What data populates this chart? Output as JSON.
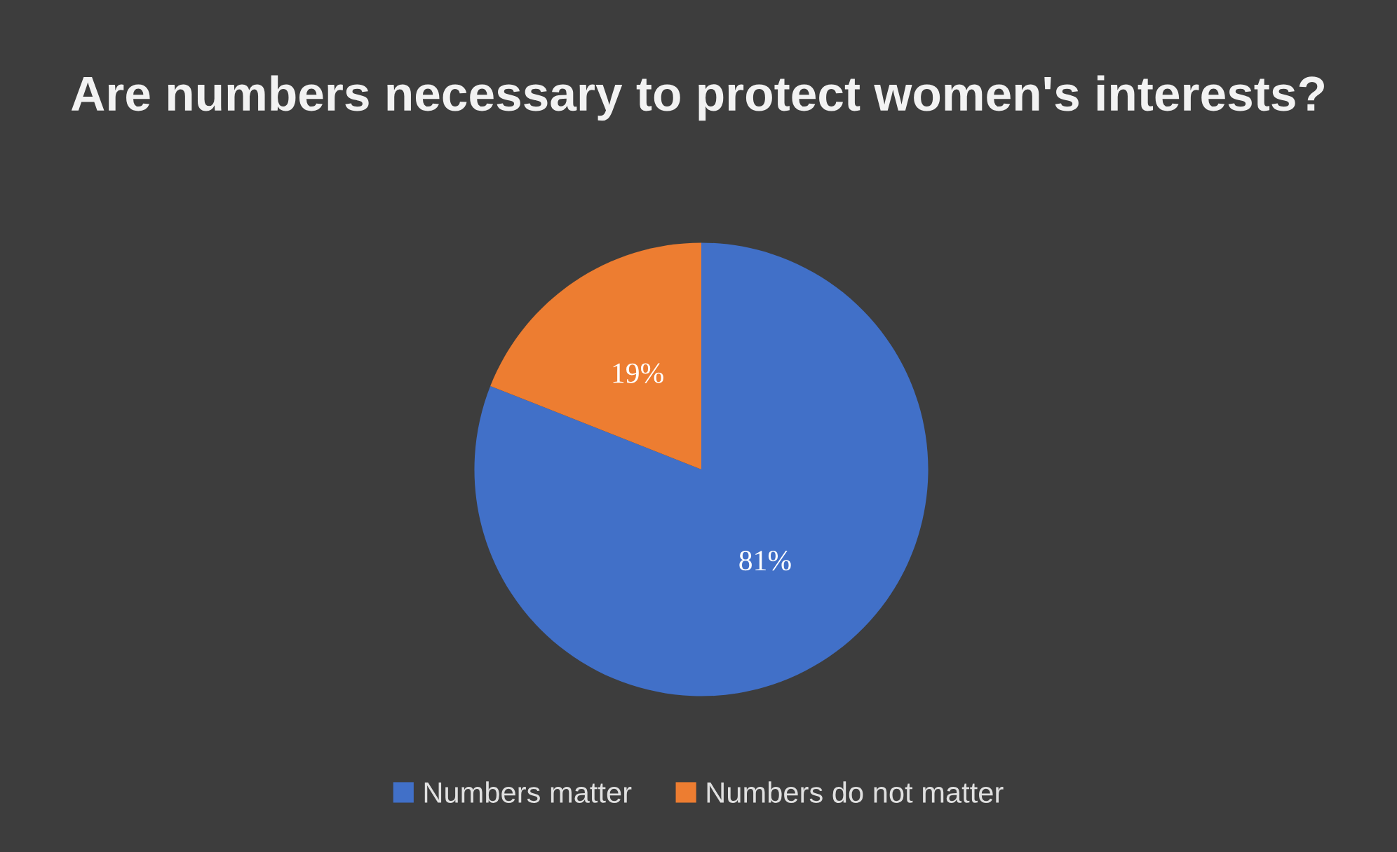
{
  "chart_data": {
    "type": "pie",
    "title": "Are numbers necessary to protect women's interests?",
    "categories": [
      "Numbers matter",
      "Numbers do not matter"
    ],
    "values": [
      81,
      19
    ],
    "colors": [
      "#4170c8",
      "#ed7d31"
    ],
    "value_labels": [
      "81%",
      "19%"
    ],
    "legend": "bottom"
  }
}
